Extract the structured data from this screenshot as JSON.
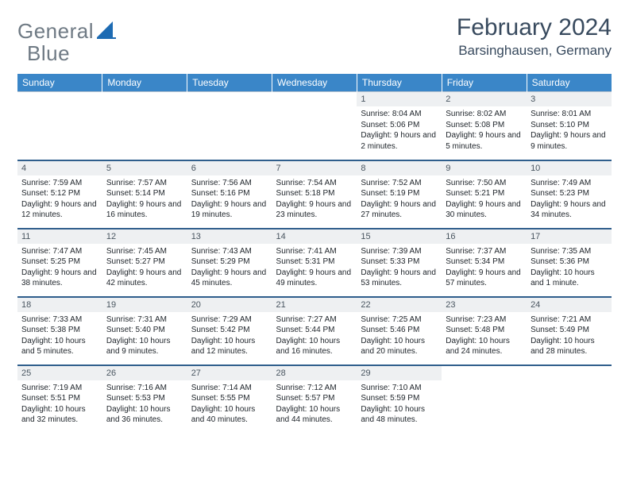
{
  "brand": {
    "name_a": "General",
    "name_b": "Blue"
  },
  "title": "February 2024",
  "location": "Barsinghausen, Germany",
  "colors": {
    "header_bg": "#3a86c8",
    "week_divider": "#2f5e8c",
    "daynum_bg": "#eef0f2",
    "text_dark": "#384a5e",
    "logo_blue": "#1d6bb3"
  },
  "weekdays": [
    "Sunday",
    "Monday",
    "Tuesday",
    "Wednesday",
    "Thursday",
    "Friday",
    "Saturday"
  ],
  "layout": {
    "first_weekday_index": 4,
    "days_in_month": 29
  },
  "days": {
    "1": {
      "sunrise": "8:04 AM",
      "sunset": "5:06 PM",
      "daylight": "9 hours and 2 minutes."
    },
    "2": {
      "sunrise": "8:02 AM",
      "sunset": "5:08 PM",
      "daylight": "9 hours and 5 minutes."
    },
    "3": {
      "sunrise": "8:01 AM",
      "sunset": "5:10 PM",
      "daylight": "9 hours and 9 minutes."
    },
    "4": {
      "sunrise": "7:59 AM",
      "sunset": "5:12 PM",
      "daylight": "9 hours and 12 minutes."
    },
    "5": {
      "sunrise": "7:57 AM",
      "sunset": "5:14 PM",
      "daylight": "9 hours and 16 minutes."
    },
    "6": {
      "sunrise": "7:56 AM",
      "sunset": "5:16 PM",
      "daylight": "9 hours and 19 minutes."
    },
    "7": {
      "sunrise": "7:54 AM",
      "sunset": "5:18 PM",
      "daylight": "9 hours and 23 minutes."
    },
    "8": {
      "sunrise": "7:52 AM",
      "sunset": "5:19 PM",
      "daylight": "9 hours and 27 minutes."
    },
    "9": {
      "sunrise": "7:50 AM",
      "sunset": "5:21 PM",
      "daylight": "9 hours and 30 minutes."
    },
    "10": {
      "sunrise": "7:49 AM",
      "sunset": "5:23 PM",
      "daylight": "9 hours and 34 minutes."
    },
    "11": {
      "sunrise": "7:47 AM",
      "sunset": "5:25 PM",
      "daylight": "9 hours and 38 minutes."
    },
    "12": {
      "sunrise": "7:45 AM",
      "sunset": "5:27 PM",
      "daylight": "9 hours and 42 minutes."
    },
    "13": {
      "sunrise": "7:43 AM",
      "sunset": "5:29 PM",
      "daylight": "9 hours and 45 minutes."
    },
    "14": {
      "sunrise": "7:41 AM",
      "sunset": "5:31 PM",
      "daylight": "9 hours and 49 minutes."
    },
    "15": {
      "sunrise": "7:39 AM",
      "sunset": "5:33 PM",
      "daylight": "9 hours and 53 minutes."
    },
    "16": {
      "sunrise": "7:37 AM",
      "sunset": "5:34 PM",
      "daylight": "9 hours and 57 minutes."
    },
    "17": {
      "sunrise": "7:35 AM",
      "sunset": "5:36 PM",
      "daylight": "10 hours and 1 minute."
    },
    "18": {
      "sunrise": "7:33 AM",
      "sunset": "5:38 PM",
      "daylight": "10 hours and 5 minutes."
    },
    "19": {
      "sunrise": "7:31 AM",
      "sunset": "5:40 PM",
      "daylight": "10 hours and 9 minutes."
    },
    "20": {
      "sunrise": "7:29 AM",
      "sunset": "5:42 PM",
      "daylight": "10 hours and 12 minutes."
    },
    "21": {
      "sunrise": "7:27 AM",
      "sunset": "5:44 PM",
      "daylight": "10 hours and 16 minutes."
    },
    "22": {
      "sunrise": "7:25 AM",
      "sunset": "5:46 PM",
      "daylight": "10 hours and 20 minutes."
    },
    "23": {
      "sunrise": "7:23 AM",
      "sunset": "5:48 PM",
      "daylight": "10 hours and 24 minutes."
    },
    "24": {
      "sunrise": "7:21 AM",
      "sunset": "5:49 PM",
      "daylight": "10 hours and 28 minutes."
    },
    "25": {
      "sunrise": "7:19 AM",
      "sunset": "5:51 PM",
      "daylight": "10 hours and 32 minutes."
    },
    "26": {
      "sunrise": "7:16 AM",
      "sunset": "5:53 PM",
      "daylight": "10 hours and 36 minutes."
    },
    "27": {
      "sunrise": "7:14 AM",
      "sunset": "5:55 PM",
      "daylight": "10 hours and 40 minutes."
    },
    "28": {
      "sunrise": "7:12 AM",
      "sunset": "5:57 PM",
      "daylight": "10 hours and 44 minutes."
    },
    "29": {
      "sunrise": "7:10 AM",
      "sunset": "5:59 PM",
      "daylight": "10 hours and 48 minutes."
    }
  },
  "labels": {
    "sunrise": "Sunrise: ",
    "sunset": "Sunset: ",
    "daylight": "Daylight: "
  }
}
